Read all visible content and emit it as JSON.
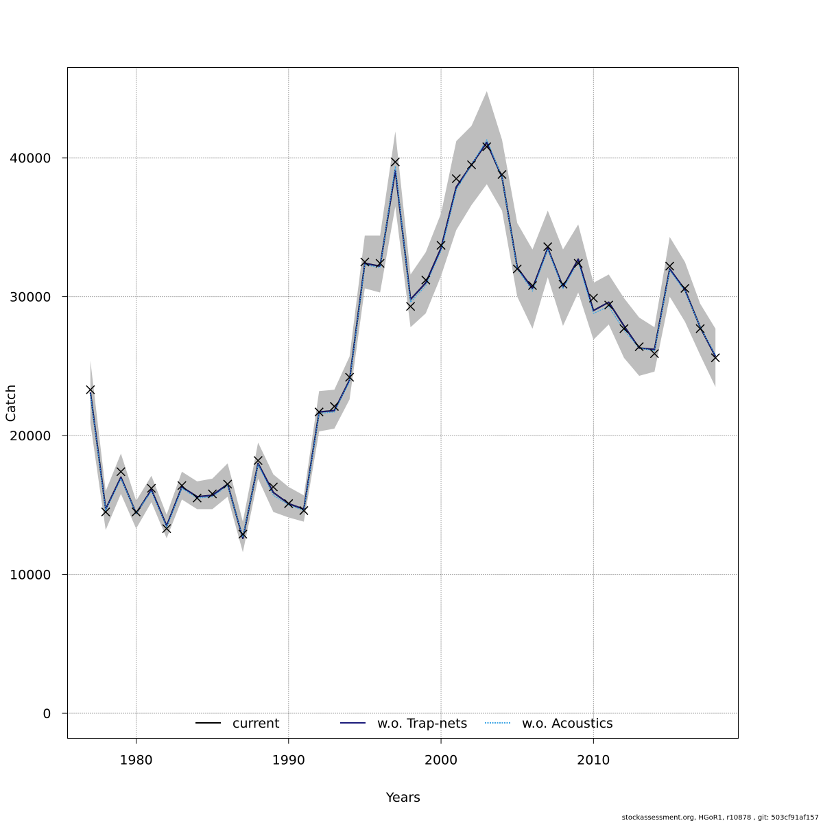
{
  "chart_data": {
    "type": "line",
    "xlabel": "Years",
    "ylabel": "Catch",
    "xlim": [
      1975.5,
      2019.5
    ],
    "ylim": [
      -1800,
      46500
    ],
    "x_ticks": [
      1980,
      1990,
      2000,
      2010
    ],
    "x_tick_labels": [
      "1980",
      "1990",
      "2000",
      "2010"
    ],
    "y_ticks": [
      0,
      10000,
      20000,
      30000,
      40000
    ],
    "y_tick_labels": [
      "0",
      "10000",
      "20000",
      "30000",
      "40000"
    ],
    "grid": true,
    "legend_position": "bottom",
    "x": [
      1977,
      1978,
      1979,
      1980,
      1981,
      1982,
      1983,
      1984,
      1985,
      1986,
      1987,
      1988,
      1989,
      1990,
      1991,
      1992,
      1993,
      1994,
      1995,
      1996,
      1997,
      1998,
      1999,
      2000,
      2001,
      2002,
      2003,
      2004,
      2005,
      2006,
      2007,
      2008,
      2009,
      2010,
      2011,
      2012,
      2013,
      2014,
      2015,
      2016,
      2017,
      2018
    ],
    "series": [
      {
        "name": "current",
        "color": "#000000",
        "dash": "solid",
        "values": [
          23100,
          14700,
          17000,
          14400,
          16100,
          13500,
          16300,
          15600,
          15700,
          16500,
          12600,
          18000,
          15900,
          15100,
          14700,
          21700,
          21800,
          24000,
          32400,
          32200,
          39100,
          29800,
          31000,
          33500,
          37900,
          39500,
          41100,
          38600,
          32100,
          30600,
          33500,
          30700,
          32700,
          29000,
          29600,
          27900,
          26300,
          26200,
          32000,
          30500,
          27800,
          25700
        ]
      },
      {
        "name": "w.o. Trap-nets",
        "color": "#1a1a7a",
        "dash": "solid",
        "values": [
          23100,
          14700,
          17000,
          14400,
          16100,
          13500,
          16300,
          15600,
          15700,
          16500,
          12600,
          18000,
          15900,
          15100,
          14700,
          21700,
          21800,
          24000,
          32400,
          32200,
          39100,
          29800,
          31000,
          33500,
          37900,
          39500,
          41100,
          38600,
          32100,
          30600,
          33500,
          30700,
          32700,
          29000,
          29600,
          27900,
          26300,
          26200,
          32000,
          30500,
          27800,
          25700
        ]
      },
      {
        "name": "w.o. Acoustics",
        "color": "#3ea6e6",
        "dash": "dotted",
        "values": [
          23000,
          14600,
          16900,
          14400,
          16000,
          13400,
          16200,
          15500,
          15600,
          16400,
          12700,
          17900,
          15700,
          15000,
          14600,
          21600,
          21700,
          23900,
          32300,
          32100,
          39400,
          29600,
          30800,
          33300,
          37700,
          39500,
          41300,
          38600,
          32000,
          30400,
          33400,
          30600,
          32500,
          28800,
          29300,
          27600,
          26300,
          26100,
          31900,
          30400,
          27800,
          25800
        ]
      }
    ],
    "ci_band": {
      "lower": [
        20900,
        13200,
        15800,
        13300,
        15200,
        12600,
        15400,
        14700,
        14700,
        15600,
        11600,
        16900,
        14500,
        14100,
        13800,
        20300,
        20500,
        22600,
        30600,
        30300,
        36500,
        27800,
        28800,
        31500,
        34800,
        36600,
        38100,
        36200,
        30000,
        27700,
        31400,
        27900,
        30300,
        26900,
        28000,
        25600,
        24300,
        24600,
        30000,
        28200,
        25800,
        23500
      ],
      "upper": [
        25400,
        16000,
        18700,
        15300,
        17100,
        14300,
        17400,
        16700,
        16900,
        18000,
        13800,
        19500,
        17200,
        16300,
        15700,
        23200,
        23300,
        25700,
        34400,
        34400,
        41900,
        31600,
        33200,
        36000,
        41200,
        42300,
        44800,
        41300,
        35300,
        33400,
        36200,
        33400,
        35200,
        31000,
        31600,
        29900,
        28500,
        27800,
        34300,
        32500,
        29500,
        27700
      ]
    },
    "observations": [
      23300,
      14500,
      17400,
      14500,
      16200,
      13300,
      16400,
      15500,
      15800,
      16500,
      12900,
      18200,
      16300,
      15100,
      14600,
      21700,
      22100,
      24200,
      32500,
      32400,
      39700,
      29300,
      31200,
      33700,
      38500,
      39500,
      40800,
      38800,
      32000,
      30800,
      33600,
      30900,
      32400,
      29900,
      29400,
      27700,
      26400,
      25900,
      32200,
      30600,
      27700,
      25600
    ],
    "legend": [
      {
        "label": "current",
        "color": "#000000",
        "style": "solid"
      },
      {
        "label": "w.o. Trap-nets",
        "color": "#1a1a7a",
        "style": "solid"
      },
      {
        "label": "w.o. Acoustics",
        "color": "#3ea6e6",
        "style": "dotted"
      }
    ]
  },
  "footer": "stockassessment.org, HGoR1, r10878 , git: 503cf91af157"
}
